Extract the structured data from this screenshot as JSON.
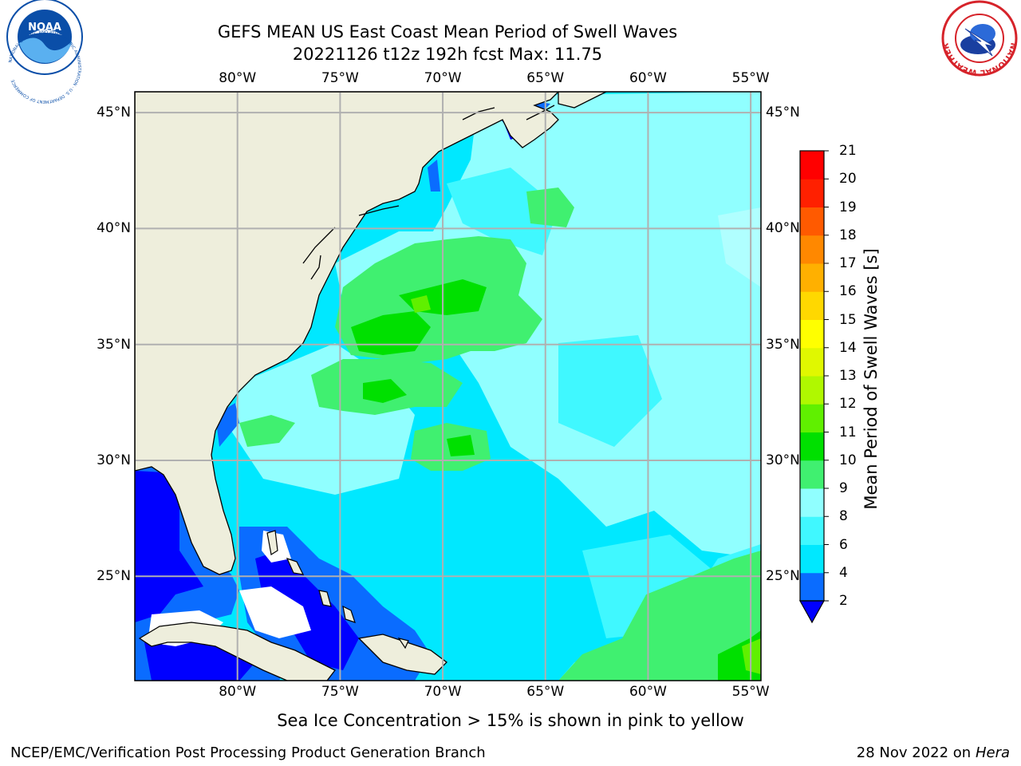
{
  "header": {
    "title_line1": "GEFS MEAN US East Coast Mean Period of Swell Waves",
    "title_line2": "20221126 t12z 192h fcst   Max: 11.75"
  },
  "logos": {
    "left": {
      "name": "noaa-logo",
      "text": "NOAA",
      "ring_text": "NATIONAL OCEANIC AND ATMOSPHERIC ADMINISTRATION · U.S. DEPARTMENT OF COMMERCE",
      "color": "#0a4ea8"
    },
    "right": {
      "name": "nws-logo",
      "ring_text": "NATIONAL WEATHER SERVICE",
      "color": "#d6232a"
    }
  },
  "map": {
    "lon_range": [
      -85,
      -54.5
    ],
    "lat_range": [
      20.5,
      45.9
    ],
    "lon_ticks": [
      {
        "lon": -80,
        "label": "80°W"
      },
      {
        "lon": -75,
        "label": "75°W"
      },
      {
        "lon": -70,
        "label": "70°W"
      },
      {
        "lon": -65,
        "label": "65°W"
      },
      {
        "lon": -60,
        "label": "60°W"
      },
      {
        "lon": -55,
        "label": "55°W"
      }
    ],
    "lat_ticks": [
      {
        "lat": 45,
        "label": "45°N"
      },
      {
        "lat": 40,
        "label": "40°N"
      },
      {
        "lat": 35,
        "label": "35°N"
      },
      {
        "lat": 30,
        "label": "30°N"
      },
      {
        "lat": 25,
        "label": "25°N"
      }
    ],
    "land_color": "#eeeedc",
    "grid_color": "#b0b0b0",
    "ocean_base_color": "#00e8ff"
  },
  "colorbar": {
    "label": "Mean Period of Swell Waves [s]",
    "levels": [
      2,
      4,
      6,
      8,
      9,
      10,
      11,
      12,
      13,
      14,
      15,
      16,
      17,
      18,
      19,
      20,
      21
    ],
    "colors": [
      "#0a6cff",
      "#00e8ff",
      "#40f8ff",
      "#90ffff",
      "#40f070",
      "#00e000",
      "#60f000",
      "#b0f800",
      "#e0f800",
      "#ffff00",
      "#ffd800",
      "#ffb000",
      "#ff8800",
      "#ff5a00",
      "#ff2000",
      "#ff0000"
    ],
    "under_color": "#0000ff"
  },
  "footer": {
    "ice_note": "Sea Ice Concentration > 15% is shown in pink to yellow",
    "branch": "NCEP/EMC/Verification Post Processing Product Generation Branch",
    "date": "28 Nov 2022 on",
    "host": "Hera"
  }
}
